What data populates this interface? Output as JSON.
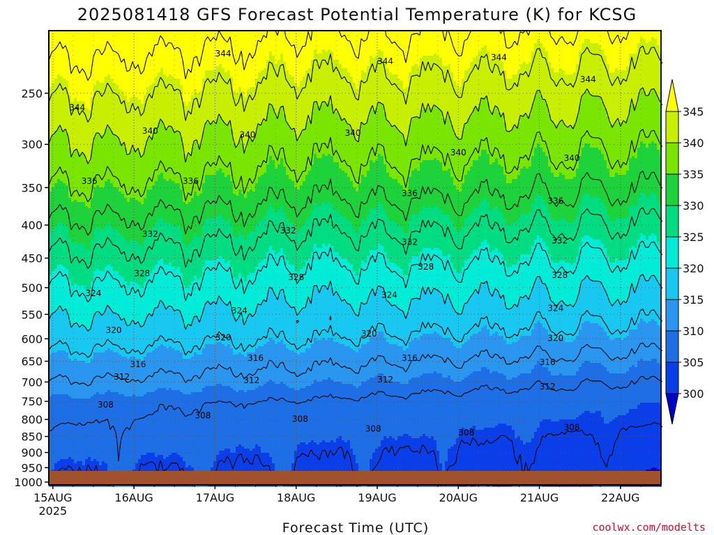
{
  "chart_data": {
    "type": "heatmap",
    "title": "2025081418 GFS Forecast Potential Temperature (K) for KCSG",
    "xlabel": "Forecast Time (UTC)",
    "ylabel": "",
    "credit": "coolwx.com/modelts",
    "x_ticks": [
      {
        "label": "15AUG",
        "sub": "2025",
        "day": 15.0
      },
      {
        "label": "16AUG",
        "sub": "",
        "day": 16.0
      },
      {
        "label": "17AUG",
        "sub": "",
        "day": 17.0
      },
      {
        "label": "18AUG",
        "sub": "",
        "day": 18.0
      },
      {
        "label": "19AUG",
        "sub": "",
        "day": 19.0
      },
      {
        "label": "20AUG",
        "sub": "",
        "day": 20.0
      },
      {
        "label": "21AUG",
        "sub": "",
        "day": 21.0
      },
      {
        "label": "22AUG",
        "sub": "",
        "day": 22.0
      }
    ],
    "xlim": [
      14.95,
      22.5
    ],
    "y_ticks": [
      250,
      300,
      350,
      400,
      450,
      500,
      550,
      600,
      650,
      700,
      750,
      800,
      850,
      900,
      950,
      1000
    ],
    "ylim": [
      200,
      1010
    ],
    "y_scale": "log",
    "y_inverted": true,
    "grid": true,
    "colorbar": {
      "levels": [
        300,
        305,
        310,
        315,
        320,
        325,
        330,
        335,
        340,
        345
      ],
      "colors": [
        "#0000c8",
        "#0a3ee8",
        "#1e6ee6",
        "#2a96f0",
        "#18c8f0",
        "#00ecd8",
        "#00dc82",
        "#1ed23c",
        "#7ae600",
        "#c8ee00",
        "#ffff00"
      ],
      "extend": "both"
    },
    "contour_interval": 4,
    "contour_labels": [
      {
        "value": 344,
        "day": 15.3,
        "p": 263
      },
      {
        "value": 344,
        "day": 17.1,
        "p": 217
      },
      {
        "value": 344,
        "day": 19.1,
        "p": 223
      },
      {
        "value": 344,
        "day": 20.5,
        "p": 220
      },
      {
        "value": 344,
        "day": 21.6,
        "p": 238
      },
      {
        "value": 340,
        "day": 16.2,
        "p": 286
      },
      {
        "value": 340,
        "day": 17.4,
        "p": 290
      },
      {
        "value": 340,
        "day": 18.7,
        "p": 288
      },
      {
        "value": 340,
        "day": 20.0,
        "p": 309
      },
      {
        "value": 340,
        "day": 21.4,
        "p": 315
      },
      {
        "value": 336,
        "day": 15.45,
        "p": 342
      },
      {
        "value": 336,
        "day": 16.7,
        "p": 342
      },
      {
        "value": 336,
        "day": 19.4,
        "p": 357
      },
      {
        "value": 336,
        "day": 21.2,
        "p": 367
      },
      {
        "value": 332,
        "day": 16.2,
        "p": 413
      },
      {
        "value": 332,
        "day": 17.9,
        "p": 408
      },
      {
        "value": 332,
        "day": 19.4,
        "p": 425
      },
      {
        "value": 332,
        "day": 21.25,
        "p": 423
      },
      {
        "value": 328,
        "day": 16.1,
        "p": 475
      },
      {
        "value": 328,
        "day": 18.0,
        "p": 482
      },
      {
        "value": 328,
        "day": 19.6,
        "p": 464
      },
      {
        "value": 328,
        "day": 21.25,
        "p": 478
      },
      {
        "value": 324,
        "day": 15.5,
        "p": 510
      },
      {
        "value": 324,
        "day": 17.3,
        "p": 543
      },
      {
        "value": 324,
        "day": 19.15,
        "p": 513
      },
      {
        "value": 324,
        "day": 21.2,
        "p": 538
      },
      {
        "value": 320,
        "day": 15.75,
        "p": 582
      },
      {
        "value": 320,
        "day": 17.1,
        "p": 597
      },
      {
        "value": 320,
        "day": 18.9,
        "p": 589
      },
      {
        "value": 320,
        "day": 21.2,
        "p": 599
      },
      {
        "value": 316,
        "day": 16.05,
        "p": 657
      },
      {
        "value": 316,
        "day": 17.5,
        "p": 643
      },
      {
        "value": 316,
        "day": 19.4,
        "p": 643
      },
      {
        "value": 316,
        "day": 21.1,
        "p": 652
      },
      {
        "value": 312,
        "day": 15.85,
        "p": 687
      },
      {
        "value": 312,
        "day": 17.45,
        "p": 696
      },
      {
        "value": 312,
        "day": 19.1,
        "p": 694
      },
      {
        "value": 312,
        "day": 21.1,
        "p": 712
      },
      {
        "value": 308,
        "day": 15.65,
        "p": 759
      },
      {
        "value": 308,
        "day": 16.85,
        "p": 789
      },
      {
        "value": 308,
        "day": 18.05,
        "p": 799
      },
      {
        "value": 308,
        "day": 18.95,
        "p": 827
      },
      {
        "value": 308,
        "day": 20.1,
        "p": 838
      },
      {
        "value": 308,
        "day": 21.4,
        "p": 823
      }
    ]
  }
}
